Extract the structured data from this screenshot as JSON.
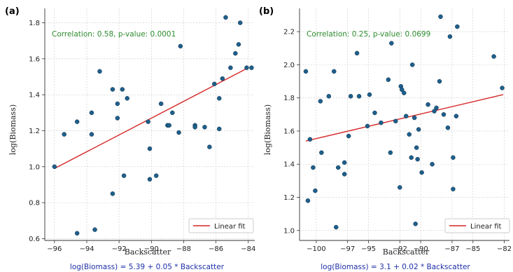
{
  "chart_data": [
    {
      "type": "scatter",
      "panel": "(a)",
      "xlabel": "Backscatter",
      "ylabel": "log(Biomass)",
      "xlim": [
        -96.6,
        -83.6
      ],
      "ylim": [
        0.59,
        1.88
      ],
      "xticks": [
        -96,
        -94,
        -92,
        -90,
        -88,
        -86,
        -84
      ],
      "yticks": [
        0.6,
        0.8,
        1.0,
        1.2,
        1.4,
        1.6,
        1.8
      ],
      "grid": true,
      "annotation": "Correlation: 0.58, p-value: 0.0001",
      "legend": {
        "label": "Linear fit",
        "placement": "bottom-right"
      },
      "fit_line": {
        "x": [
          -96.0,
          -84.0
        ],
        "y": [
          0.99,
          1.55
        ]
      },
      "equation": "log(Biomass) = 5.39 + 0.05 * Backscatter",
      "colors": {
        "points": "#1f5f8b",
        "fit": "#d62728",
        "annotation": "#2e8b2e",
        "equation": "#1f2fa8"
      },
      "points": [
        {
          "x": -96.0,
          "y": 1.0
        },
        {
          "x": -95.4,
          "y": 1.18
        },
        {
          "x": -94.6,
          "y": 1.25
        },
        {
          "x": -94.6,
          "y": 0.63
        },
        {
          "x": -93.7,
          "y": 1.3
        },
        {
          "x": -93.7,
          "y": 1.18
        },
        {
          "x": -93.5,
          "y": 0.65
        },
        {
          "x": -93.2,
          "y": 1.53
        },
        {
          "x": -92.4,
          "y": 1.43
        },
        {
          "x": -92.4,
          "y": 0.85
        },
        {
          "x": -92.1,
          "y": 1.35
        },
        {
          "x": -92.1,
          "y": 1.27
        },
        {
          "x": -91.8,
          "y": 1.43
        },
        {
          "x": -91.7,
          "y": 0.95
        },
        {
          "x": -91.5,
          "y": 1.38
        },
        {
          "x": -90.2,
          "y": 1.25
        },
        {
          "x": -90.1,
          "y": 1.1
        },
        {
          "x": -90.1,
          "y": 0.93
        },
        {
          "x": -89.7,
          "y": 0.95
        },
        {
          "x": -89.4,
          "y": 1.35
        },
        {
          "x": -89.0,
          "y": 1.23
        },
        {
          "x": -88.9,
          "y": 1.23
        },
        {
          "x": -88.7,
          "y": 1.3
        },
        {
          "x": -88.3,
          "y": 1.19
        },
        {
          "x": -88.2,
          "y": 1.67
        },
        {
          "x": -87.3,
          "y": 1.23
        },
        {
          "x": -87.3,
          "y": 1.22
        },
        {
          "x": -86.7,
          "y": 1.22
        },
        {
          "x": -86.4,
          "y": 1.11
        },
        {
          "x": -86.1,
          "y": 1.46
        },
        {
          "x": -85.8,
          "y": 1.38
        },
        {
          "x": -85.8,
          "y": 1.21
        },
        {
          "x": -85.6,
          "y": 1.49
        },
        {
          "x": -85.4,
          "y": 1.83
        },
        {
          "x": -85.1,
          "y": 1.55
        },
        {
          "x": -84.8,
          "y": 1.63
        },
        {
          "x": -84.6,
          "y": 1.68
        },
        {
          "x": -84.5,
          "y": 1.8
        },
        {
          "x": -84.1,
          "y": 1.55
        },
        {
          "x": -83.8,
          "y": 1.55
        }
      ]
    },
    {
      "type": "scatter",
      "panel": "(b)",
      "xlabel": "Backscatter",
      "ylabel": "log(Biomass)",
      "xlim": [
        -101.6,
        -81.5
      ],
      "ylim": [
        0.94,
        2.34
      ],
      "xticks": [
        -100,
        -97,
        -95,
        -92,
        -90,
        -87,
        -85,
        -82
      ],
      "yticks": [
        1.0,
        1.2,
        1.4,
        1.6,
        1.8,
        2.0,
        2.2
      ],
      "grid": true,
      "annotation": "Correlation: 0.25, p-value: 0.0699",
      "legend": {
        "label": "Linear fit",
        "placement": "bottom-right"
      },
      "fit_line": {
        "x": [
          -101.0,
          -82.1
        ],
        "y": [
          1.54,
          1.82
        ]
      },
      "equation": "log(Biomass) = 3.1 + 0.02 * Backscatter",
      "colors": {
        "points": "#1f5f8b",
        "fit": "#d62728",
        "annotation": "#2e8b2e",
        "equation": "#1f2fa8"
      },
      "points": [
        {
          "x": -101.0,
          "y": 1.96
        },
        {
          "x": -100.8,
          "y": 1.18
        },
        {
          "x": -100.6,
          "y": 1.55
        },
        {
          "x": -100.3,
          "y": 1.38
        },
        {
          "x": -100.1,
          "y": 1.24
        },
        {
          "x": -99.6,
          "y": 1.78
        },
        {
          "x": -99.5,
          "y": 1.47
        },
        {
          "x": -98.8,
          "y": 1.81
        },
        {
          "x": -98.3,
          "y": 1.96
        },
        {
          "x": -98.1,
          "y": 1.02
        },
        {
          "x": -97.9,
          "y": 1.38
        },
        {
          "x": -97.3,
          "y": 1.41
        },
        {
          "x": -97.3,
          "y": 1.34
        },
        {
          "x": -96.9,
          "y": 1.57
        },
        {
          "x": -96.7,
          "y": 1.81
        },
        {
          "x": -96.1,
          "y": 2.07
        },
        {
          "x": -95.9,
          "y": 1.81
        },
        {
          "x": -95.1,
          "y": 1.63
        },
        {
          "x": -94.9,
          "y": 1.82
        },
        {
          "x": -94.4,
          "y": 1.71
        },
        {
          "x": -93.8,
          "y": 1.65
        },
        {
          "x": -93.1,
          "y": 1.91
        },
        {
          "x": -92.9,
          "y": 1.47
        },
        {
          "x": -92.8,
          "y": 2.13
        },
        {
          "x": -92.4,
          "y": 1.66
        },
        {
          "x": -92.0,
          "y": 1.26
        },
        {
          "x": -91.9,
          "y": 1.87
        },
        {
          "x": -91.8,
          "y": 1.85
        },
        {
          "x": -91.6,
          "y": 1.83
        },
        {
          "x": -91.4,
          "y": 1.69
        },
        {
          "x": -91.1,
          "y": 1.58
        },
        {
          "x": -90.9,
          "y": 1.44
        },
        {
          "x": -90.8,
          "y": 2.0
        },
        {
          "x": -90.6,
          "y": 1.68
        },
        {
          "x": -90.5,
          "y": 1.04
        },
        {
          "x": -90.4,
          "y": 1.5
        },
        {
          "x": -90.3,
          "y": 1.43
        },
        {
          "x": -90.2,
          "y": 1.61
        },
        {
          "x": -89.9,
          "y": 1.35
        },
        {
          "x": -89.3,
          "y": 1.76
        },
        {
          "x": -88.9,
          "y": 1.4
        },
        {
          "x": -88.7,
          "y": 1.72
        },
        {
          "x": -88.5,
          "y": 1.74
        },
        {
          "x": -88.2,
          "y": 1.9
        },
        {
          "x": -88.1,
          "y": 2.29
        },
        {
          "x": -87.8,
          "y": 1.7
        },
        {
          "x": -87.4,
          "y": 1.62
        },
        {
          "x": -87.2,
          "y": 2.17
        },
        {
          "x": -86.9,
          "y": 1.44
        },
        {
          "x": -86.9,
          "y": 1.25
        },
        {
          "x": -86.6,
          "y": 1.69
        },
        {
          "x": -86.5,
          "y": 2.23
        },
        {
          "x": -83.0,
          "y": 2.05
        },
        {
          "x": -82.2,
          "y": 1.86
        }
      ]
    }
  ]
}
